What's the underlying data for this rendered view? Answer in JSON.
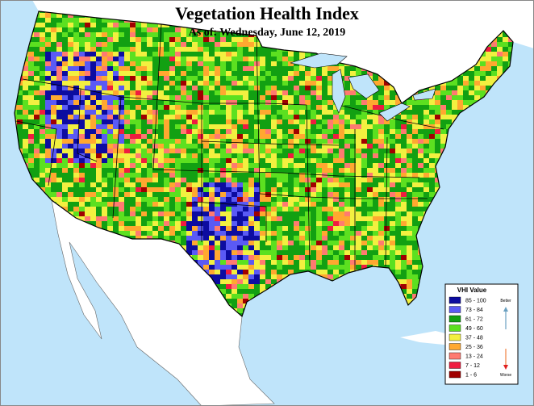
{
  "header": {
    "title": "Vegetation Health Index",
    "subtitle": "As of: Wednesday, June 12, 2019"
  },
  "legend": {
    "title": "VHI Value",
    "entries": [
      {
        "label": "85 - 100",
        "color": "#0c0ca0"
      },
      {
        "label": "73 - 84",
        "color": "#5a5af5"
      },
      {
        "label": "61 - 72",
        "color": "#12a012"
      },
      {
        "label": "49 - 60",
        "color": "#5ce020"
      },
      {
        "label": "37 - 48",
        "color": "#f2f040"
      },
      {
        "label": "25 - 36",
        "color": "#ffa830"
      },
      {
        "label": "13 - 24",
        "color": "#ff7a70"
      },
      {
        "label": "7 - 12",
        "color": "#f01c40"
      },
      {
        "label": "1 - 6",
        "color": "#a00000"
      }
    ],
    "better": "Better",
    "worse": "Worse"
  }
}
